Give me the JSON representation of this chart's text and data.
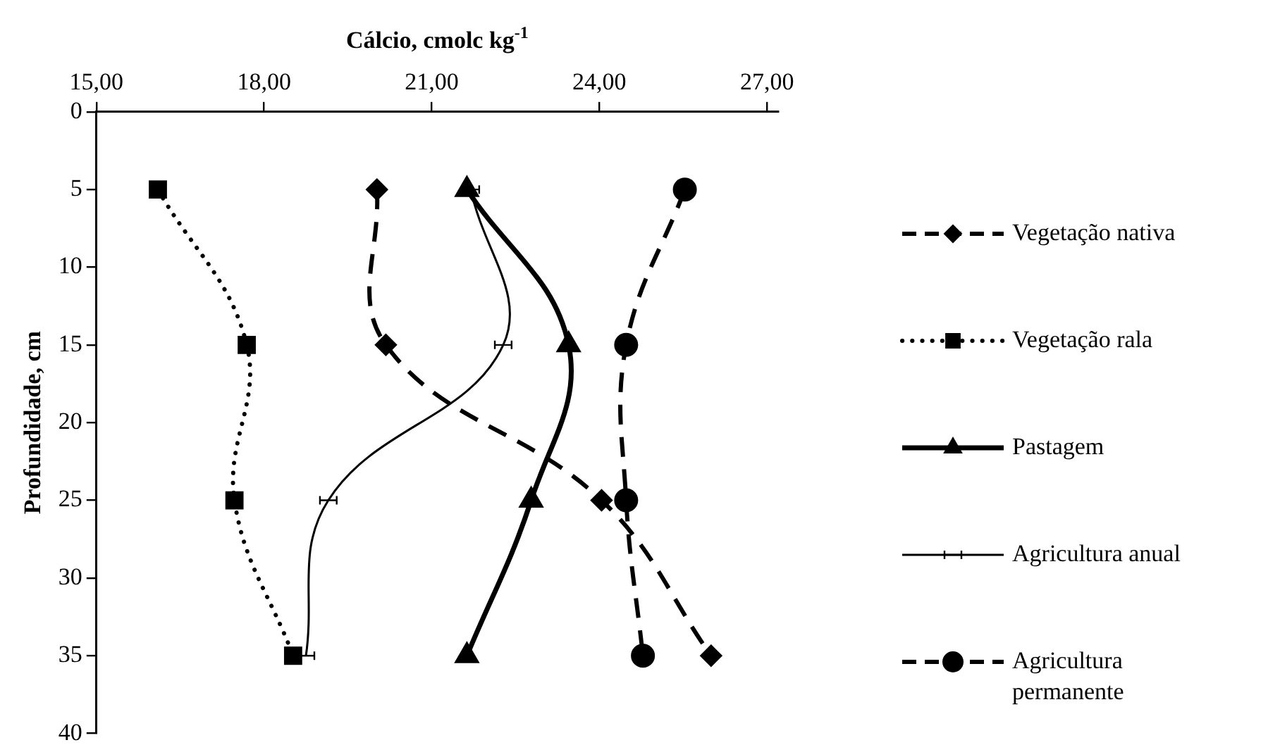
{
  "chart_data": {
    "type": "line",
    "xlabel": "Cálcio, cmolc kg$^{-1}$",
    "ylabel": "Profundidade, cm",
    "xlim": [
      15,
      27.2
    ],
    "xticks": [
      {
        "value": 15,
        "label": "15,00"
      },
      {
        "value": 18,
        "label": "18,00"
      },
      {
        "value": 21,
        "label": "21,00"
      },
      {
        "value": 24,
        "label": "24,00"
      },
      {
        "value": 27,
        "label": "27,00"
      }
    ],
    "ylim": [
      40,
      0
    ],
    "yticks": [
      0,
      5,
      10,
      15,
      20,
      25,
      30,
      35,
      40
    ],
    "grid": false,
    "legend": "right",
    "series": [
      {
        "name": "Vegetação nativa",
        "color": "#000000",
        "line_style": "dashed",
        "marker": "diamond",
        "x": [
          20.02,
          20.18,
          24.04,
          26.0
        ],
        "values": [
          5,
          15,
          25,
          35
        ]
      },
      {
        "name": "Vegetação rala",
        "color": "#000000",
        "line_style": "dotted",
        "marker": "square",
        "x": [
          16.1,
          17.69,
          17.47,
          18.52
        ],
        "values": [
          5,
          15,
          25,
          35
        ]
      },
      {
        "name": "Pastagem",
        "color": "#000000",
        "line_style": "solid",
        "marker": "triangle",
        "x": [
          21.63,
          23.45,
          22.78,
          21.63
        ],
        "values": [
          5,
          15,
          25,
          35
        ]
      },
      {
        "name": "Agricultura anual",
        "color": "#000000",
        "line_style": "solid",
        "marker": "none",
        "x": [
          21.7,
          22.28,
          19.15,
          18.75
        ],
        "values": [
          5,
          15,
          25,
          35
        ],
        "xerrors": [
          0.15,
          0.15,
          0.15,
          0.15
        ]
      },
      {
        "name": "Agricultura permanente",
        "color": "#000000",
        "line_style": "dashed",
        "marker": "circle",
        "x": [
          25.53,
          24.48,
          24.48,
          24.78
        ],
        "values": [
          5,
          15,
          25,
          35
        ]
      }
    ]
  }
}
